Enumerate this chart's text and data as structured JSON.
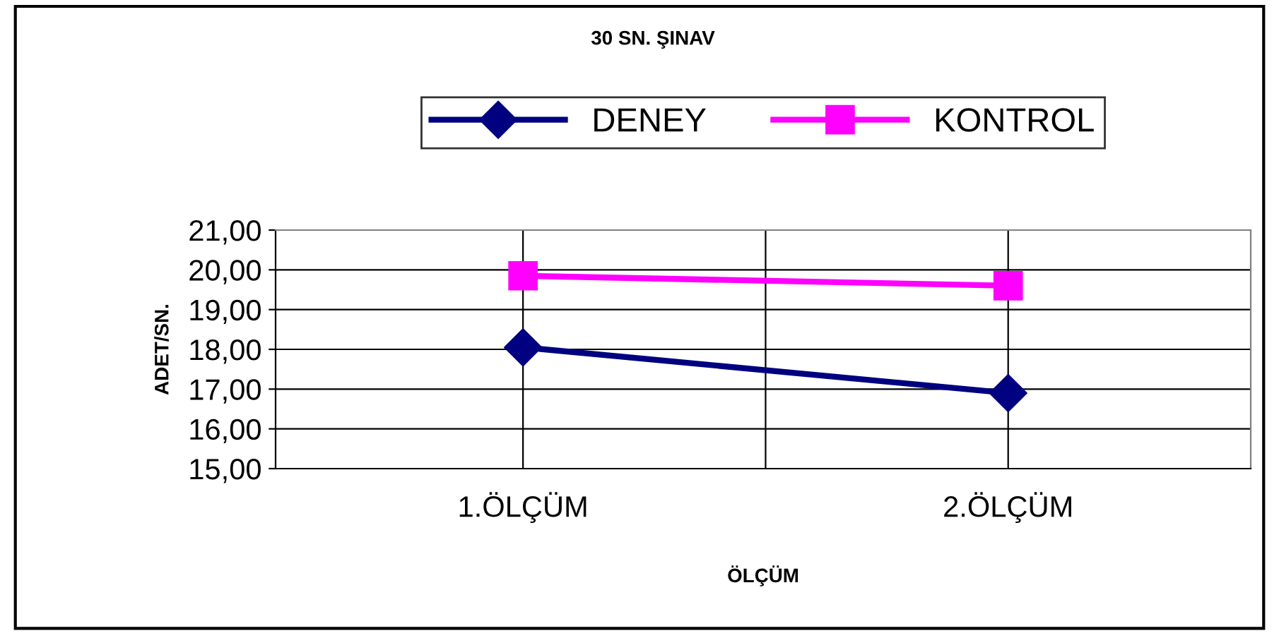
{
  "chart_data": {
    "type": "line",
    "title": "30 SN. ŞINAV",
    "xlabel": "ÖLÇÜM",
    "ylabel": "ADET/SN.",
    "categories": [
      "1.ÖLÇÜM",
      "2.ÖLÇÜM"
    ],
    "series": [
      {
        "name": "DENEY",
        "color": "#000080",
        "values": [
          18.05,
          16.9
        ],
        "marker": "diamond"
      },
      {
        "name": "KONTROL",
        "color": "#ff00ff",
        "values": [
          19.85,
          19.6
        ],
        "marker": "square"
      }
    ],
    "ylim": [
      15,
      21
    ],
    "yticks": [
      {
        "value": 15,
        "label": "15,00"
      },
      {
        "value": 16,
        "label": "16,00"
      },
      {
        "value": 17,
        "label": "17,00"
      },
      {
        "value": 18,
        "label": "18,00"
      },
      {
        "value": 19,
        "label": "19,00"
      },
      {
        "value": 20,
        "label": "20,00"
      },
      {
        "value": 21,
        "label": "21,00"
      }
    ],
    "grid": true,
    "legend": "top",
    "line_style": "solid"
  }
}
